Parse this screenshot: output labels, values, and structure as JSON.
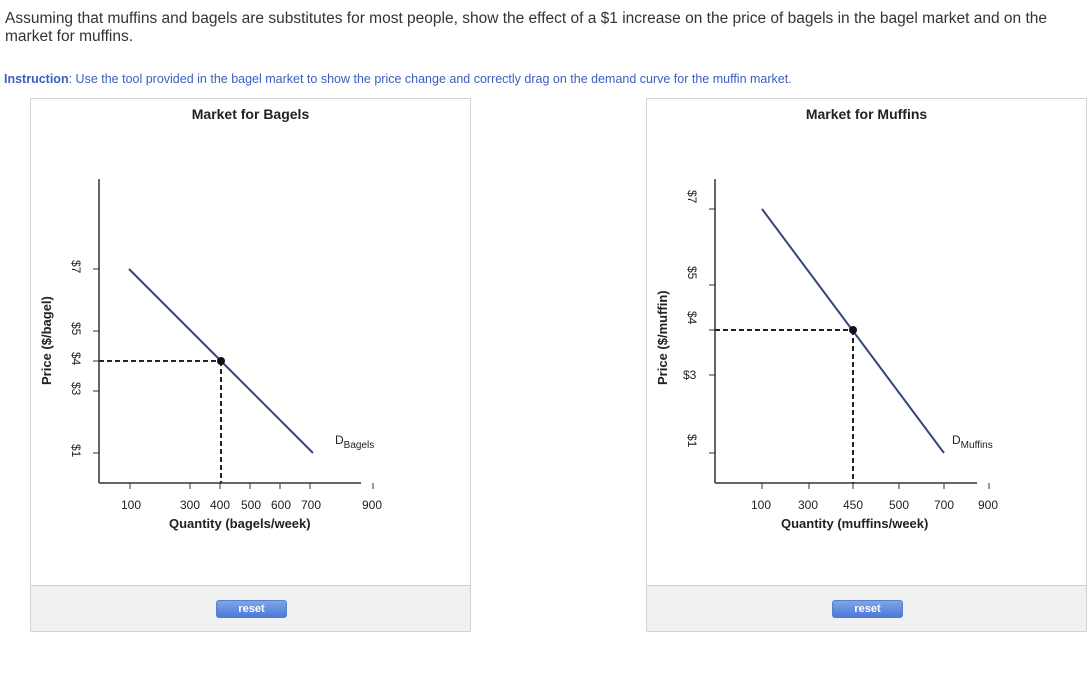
{
  "question": "Assuming that muffins and bagels are substitutes for most people, show the effect of a $1 increase on the price of bagels in the bagel market and on the market for muffins.",
  "instruction": {
    "prefix": "Instruction",
    "text": ": Use the tool provided in the bagel market to show the price change and correctly drag on the demand curve for the muffin market."
  },
  "bagels": {
    "title": "Market for Bagels",
    "y_axis_title": "Price ($/bagel)",
    "x_axis_title": "Quantity (bagels/week)",
    "price_labels": [
      "$7",
      "$5",
      "$4",
      "$3",
      "$1"
    ],
    "qty_labels": [
      "100",
      "300",
      "400",
      "500",
      "600",
      "700",
      "900"
    ],
    "demand_label": "D",
    "demand_sub": "Bagels",
    "reset_label": "reset"
  },
  "muffins": {
    "title": "Market for Muffins",
    "y_axis_title": "Price ($/muffin)",
    "x_axis_title": "Quantity (muffins/week)",
    "price_labels": [
      "$7",
      "$5",
      "$4",
      "$3",
      "$1"
    ],
    "qty_labels": [
      "100",
      "300",
      "450",
      "500",
      "700",
      "900"
    ],
    "demand_label": "D",
    "demand_sub": "Muffins",
    "reset_label": "reset"
  },
  "colors": {
    "demand": "#34467c",
    "instruction": "#3b5fc0",
    "reset": "#4a79d6"
  }
}
